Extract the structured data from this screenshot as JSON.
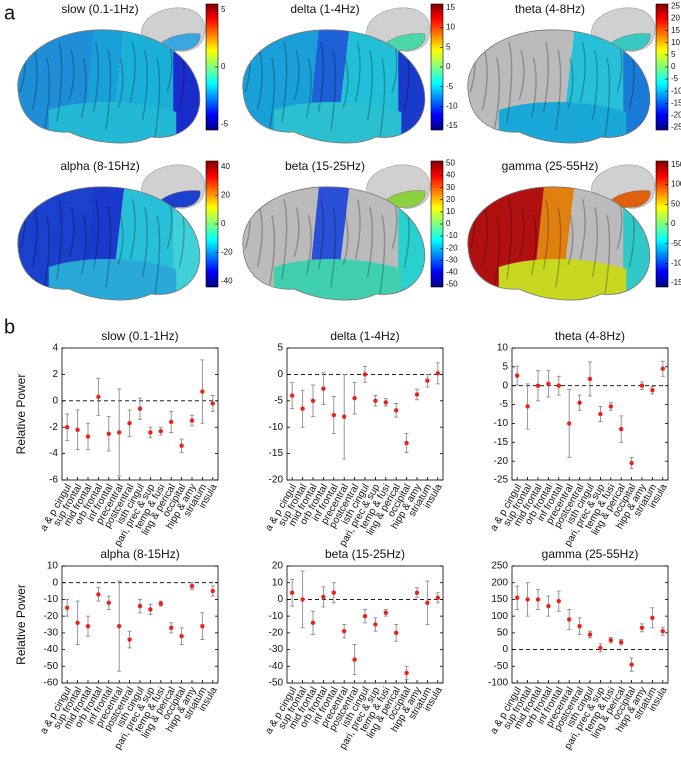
{
  "panel_labels": [
    "a",
    "b"
  ],
  "brain_maps": [
    {
      "title": "slow (0.1-1Hz)",
      "clim": [
        -5.5,
        5.5
      ],
      "colorbar_ticks": [
        5,
        0,
        -5
      ]
    },
    {
      "title": "delta (1-4Hz)",
      "clim": [
        -16,
        16
      ],
      "colorbar_ticks": [
        15,
        10,
        5,
        0,
        -5,
        -10,
        -15
      ]
    },
    {
      "title": "theta (4-8Hz)",
      "clim": [
        -26,
        26
      ],
      "colorbar_ticks": [
        25,
        20,
        15,
        10,
        5,
        0,
        -5,
        -10,
        -15,
        -20,
        -25
      ]
    },
    {
      "title": "alpha (8-15Hz)",
      "clim": [
        -44,
        44
      ],
      "colorbar_ticks": [
        40,
        20,
        0,
        -20,
        -40
      ]
    },
    {
      "title": "beta (15-25Hz)",
      "clim": [
        -52,
        52
      ],
      "colorbar_ticks": [
        50,
        40,
        30,
        20,
        10,
        0,
        -10,
        -20,
        -30,
        -40,
        -50
      ]
    },
    {
      "title": "gamma (25-55Hz)",
      "clim": [
        -160,
        160
      ],
      "colorbar_ticks": [
        150,
        100,
        50,
        0,
        -50,
        -100,
        -150
      ]
    }
  ],
  "chart_data": [
    {
      "type": "errorbar",
      "title": "slow (0.1-1Hz)",
      "y_label": "Relative Power",
      "categories": [
        "a & p cingul",
        "sup frontal",
        "mid frontal",
        "orb frontal",
        "inf frontal",
        "precentral",
        "postcentral",
        "isth cingul",
        "pari, prec & sup",
        "temp & fusi",
        "ling & perical",
        "occipital",
        "hipp & amy",
        "striatum",
        "insula"
      ],
      "values": [
        -2,
        -2.2,
        -2.7,
        0.3,
        -2.5,
        -2.4,
        -1.7,
        -0.6,
        -2.4,
        -2.3,
        -1.6,
        -3.4,
        -1.5,
        0.7,
        -0.2
      ],
      "errors": [
        1,
        1.5,
        1,
        1.4,
        1.3,
        3.3,
        1,
        0.8,
        0.4,
        0.3,
        0.8,
        0.5,
        0.4,
        2.4,
        0.6
      ],
      "ylim": [
        -6,
        4
      ],
      "yticks": [
        -6,
        -4,
        -2,
        0,
        2,
        4
      ],
      "reference_line": 0,
      "color": "#e8231c",
      "error_color": "#8c8c8c"
    },
    {
      "type": "errorbar",
      "title": "delta (1-4Hz)",
      "categories": [
        "a & p cingul",
        "sup frontal",
        "mid frontal",
        "orb frontal",
        "inf frontal",
        "precentral",
        "postcentral",
        "isth cingul",
        "pari, prec & sup",
        "temp & fusi",
        "ling & perical",
        "occipital",
        "hipp & amy",
        "striatum",
        "insula"
      ],
      "values": [
        -4,
        -6.5,
        -5,
        -2.7,
        -7.7,
        -8,
        -4.5,
        0,
        -5,
        -5.3,
        -6.8,
        -13,
        -3.8,
        -1.2,
        0.2
      ],
      "errors": [
        2.5,
        3.5,
        3,
        3,
        3.5,
        8,
        3,
        1.5,
        1,
        0.7,
        1.3,
        1.8,
        1,
        1.2,
        2
      ],
      "ylim": [
        -20,
        5
      ],
      "yticks": [
        -20,
        -15,
        -10,
        -5,
        0,
        5
      ],
      "reference_line": 0,
      "color": "#e8231c",
      "error_color": "#8c8c8c"
    },
    {
      "type": "errorbar",
      "title": "theta (4-8Hz)",
      "categories": [
        "a & p cingul",
        "sup frontal",
        "mid frontal",
        "orb frontal",
        "inf frontal",
        "precentral",
        "postcentral",
        "isth cingul",
        "pari, prec & sup",
        "temp & fusi",
        "ling & perical",
        "occipital",
        "hipp & amy",
        "striatum",
        "insula"
      ],
      "values": [
        2.7,
        -5.5,
        0,
        0.5,
        0,
        -10,
        -4.5,
        1.8,
        -7.5,
        -5.5,
        -11.5,
        -20.5,
        0,
        -1.2,
        4.5
      ],
      "errors": [
        2.5,
        6,
        4,
        3.5,
        2.5,
        9,
        2,
        4.5,
        2,
        1,
        3.5,
        1.5,
        1,
        1,
        2
      ],
      "ylim": [
        -25,
        10
      ],
      "yticks": [
        -25,
        -20,
        -15,
        -10,
        -5,
        0,
        5,
        10
      ],
      "reference_line": 0,
      "color": "#e8231c",
      "error_color": "#8c8c8c"
    },
    {
      "type": "errorbar",
      "title": "alpha (8-15Hz)",
      "y_label": "Relative Power",
      "categories": [
        "a & p cingul",
        "sup frontal",
        "mid frontal",
        "orb frontal",
        "inf frontal",
        "precentral",
        "postcentral",
        "isth cingul",
        "pari, prec & sup",
        "temp & fusi",
        "ling & perical",
        "occipital",
        "hipp & amy",
        "striatum",
        "insula"
      ],
      "values": [
        -15,
        -24,
        -26,
        -7,
        -12,
        -26,
        -34,
        -14,
        -16,
        -12.5,
        -27,
        -32,
        -2,
        -26,
        -5
      ],
      "errors": [
        5,
        13,
        6,
        4,
        4,
        27,
        5,
        4,
        3,
        1.5,
        3,
        5,
        2,
        8,
        3
      ],
      "ylim": [
        -60,
        10
      ],
      "yticks": [
        -60,
        -50,
        -40,
        -30,
        -20,
        -10,
        0,
        10
      ],
      "reference_line": 0,
      "color": "#e8231c",
      "error_color": "#8c8c8c"
    },
    {
      "type": "errorbar",
      "title": "beta (15-25Hz)",
      "categories": [
        "a & p cingul",
        "sup frontal",
        "mid frontal",
        "orb frontal",
        "inf frontal",
        "precentral",
        "postcentral",
        "isth cingul",
        "pari, prec & sup",
        "temp & fusi",
        "ling & perical",
        "occipital",
        "hipp & amy",
        "striatum",
        "insula"
      ],
      "values": [
        4,
        0,
        -14,
        1.5,
        4,
        -19,
        -36,
        -10,
        -15,
        -8,
        -20,
        -44,
        4,
        -2,
        1
      ],
      "errors": [
        8,
        17,
        7,
        6,
        6,
        4,
        9,
        4,
        4,
        2,
        5,
        4,
        3,
        13,
        3
      ],
      "ylim": [
        -50,
        20
      ],
      "yticks": [
        -50,
        -40,
        -30,
        -20,
        -10,
        0,
        10,
        20
      ],
      "reference_line": 0,
      "color": "#e8231c",
      "error_color": "#8c8c8c"
    },
    {
      "type": "errorbar",
      "title": "gamma (25-55Hz)",
      "categories": [
        "a & p cingul",
        "sup frontal",
        "mid frontal",
        "orb frontal",
        "inf frontal",
        "precentral",
        "postcentral",
        "isth cingul",
        "pari, prec & sup",
        "temp & fusi",
        "ling & perical",
        "occipital",
        "hipp & amy",
        "striatum",
        "insula"
      ],
      "values": [
        155,
        150,
        150,
        130,
        145,
        90,
        70,
        45,
        5,
        28,
        22,
        -45,
        65,
        95,
        55
      ],
      "errors": [
        35,
        50,
        30,
        30,
        30,
        30,
        25,
        10,
        12,
        8,
        8,
        20,
        12,
        30,
        12
      ],
      "ylim": [
        -100,
        250
      ],
      "yticks": [
        -100,
        -50,
        0,
        50,
        100,
        150,
        200,
        250
      ],
      "reference_line": 0,
      "color": "#e8231c",
      "error_color": "#8c8c8c"
    }
  ]
}
